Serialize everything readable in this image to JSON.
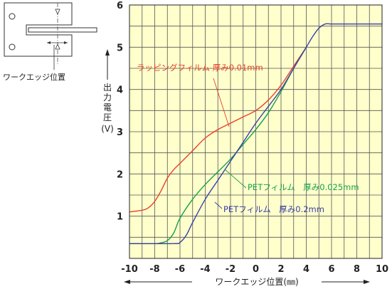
{
  "sensor_diagram": {
    "caption": "ワークエッジ位置"
  },
  "chart_data": {
    "type": "line",
    "title": "",
    "xlabel": "ワークエッジ位置(㎜)",
    "ylabel_chars": [
      "出",
      "力",
      "電",
      "圧"
    ],
    "ylabel_unit": "(V)",
    "xlim": [
      -10,
      10
    ],
    "ylim": [
      0,
      6
    ],
    "xticks": [
      "-10",
      "-8",
      "-6",
      "-4",
      "-2",
      "0",
      "2",
      "4",
      "6",
      "8",
      "10"
    ],
    "yticks": [
      "1",
      "2",
      "3",
      "4",
      "5",
      "6"
    ],
    "grid": true,
    "plot_background": "#ffffcc",
    "series": [
      {
        "name": "ラッピングフィルム 厚み0.01mm",
        "color": "#e8402a",
        "x": [
          -10,
          -9,
          -8.5,
          -8,
          -7.5,
          -7,
          -6.5,
          -6,
          -5,
          -4,
          -3,
          -2,
          -1,
          0,
          1,
          2,
          3,
          4
        ],
        "y": [
          1.1,
          1.14,
          1.2,
          1.35,
          1.6,
          1.9,
          2.1,
          2.25,
          2.55,
          2.85,
          3.05,
          3.2,
          3.35,
          3.5,
          3.75,
          4.1,
          4.55,
          5.0
        ]
      },
      {
        "name": "PETフィルム　厚み0.025mm",
        "color": "#14a04a",
        "x": [
          -10,
          -8,
          -7.5,
          -7,
          -6.5,
          -6,
          -5,
          -4,
          -3,
          -2,
          -1,
          0,
          1,
          2,
          3,
          4
        ],
        "y": [
          0.35,
          0.35,
          0.37,
          0.42,
          0.6,
          0.95,
          1.4,
          1.75,
          2.05,
          2.35,
          2.7,
          3.05,
          3.45,
          3.95,
          4.5,
          5.0
        ]
      },
      {
        "name": "PETフィルム　厚み0.2mm",
        "color": "#3a3ea8",
        "x": [
          -10,
          -6.5,
          -6,
          -5.5,
          -5,
          -4,
          -3,
          -2,
          -1,
          0,
          1,
          2,
          3,
          4,
          4.5,
          5,
          5.5,
          6,
          7,
          10
        ],
        "y": [
          0.35,
          0.35,
          0.38,
          0.55,
          0.85,
          1.4,
          1.85,
          2.3,
          2.75,
          3.2,
          3.6,
          4.0,
          4.5,
          5.0,
          5.25,
          5.45,
          5.55,
          5.55,
          5.55,
          5.55
        ]
      }
    ]
  }
}
